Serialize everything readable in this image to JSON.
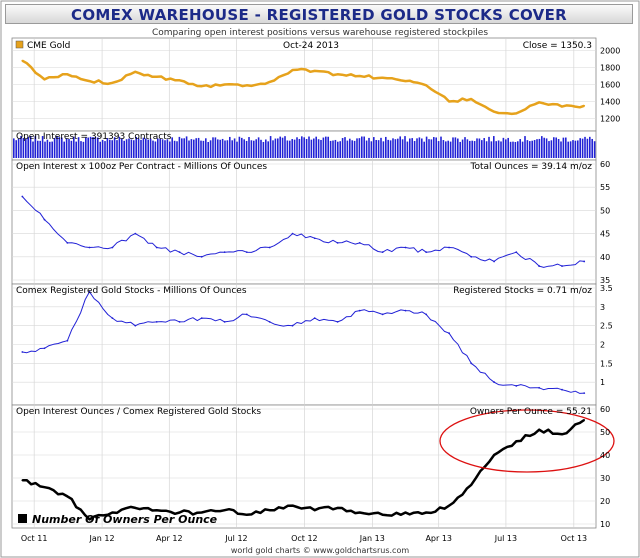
{
  "title": "COMEX WAREHOUSE - REGISTERED GOLD STOCKS COVER",
  "subtitle": "Comparing open interest positions versus warehouse registered stockpiles",
  "footer": "world gold charts © www.goldchartsrus.com",
  "colors": {
    "gold": "#e6a21c",
    "blue": "#2222d6",
    "black": "#000000",
    "annotation": "#dd1111"
  },
  "x_axis": {
    "labels": [
      "Oct 11",
      "Jan 12",
      "Apr 12",
      "Jul 12",
      "Oct 12",
      "Jan 13",
      "Apr 13",
      "Jul 13",
      "Oct 13"
    ],
    "start": "2011-09",
    "end": "2013-10-31"
  },
  "chart_data": [
    {
      "type": "line",
      "legend": "CME Gold",
      "date_label": "Oct-24  2013",
      "readout": "Close = 1350.3",
      "ylim": [
        1100,
        2100
      ],
      "yticks": [
        1200,
        1400,
        1600,
        1800,
        2000
      ],
      "x": [
        "2011-09",
        "2011-10",
        "2011-11",
        "2011-12",
        "2012-01",
        "2012-02",
        "2012-03",
        "2012-04",
        "2012-05",
        "2012-06",
        "2012-07",
        "2012-08",
        "2012-09",
        "2012-10",
        "2012-11",
        "2012-12",
        "2013-01",
        "2013-02",
        "2013-03",
        "2013-04",
        "2013-05",
        "2013-06",
        "2013-07",
        "2013-08",
        "2013-09",
        "2013-10"
      ],
      "values": [
        1880,
        1660,
        1720,
        1640,
        1620,
        1750,
        1690,
        1650,
        1580,
        1600,
        1590,
        1630,
        1770,
        1760,
        1720,
        1700,
        1680,
        1640,
        1590,
        1400,
        1430,
        1280,
        1260,
        1390,
        1340,
        1350
      ]
    },
    {
      "type": "bar",
      "label": "Open Interest = 391393 Contracts"
    },
    {
      "type": "line",
      "label": "Open Interest x 100oz Per Contract - Millions Of Ounces",
      "readout": "Total Ounces = 39.14 m/oz",
      "ylim": [
        35,
        60
      ],
      "yticks": [
        35,
        40,
        45,
        50,
        55,
        60
      ],
      "x": [
        "2011-09",
        "2011-10",
        "2011-11",
        "2011-12",
        "2012-01",
        "2012-02",
        "2012-03",
        "2012-04",
        "2012-05",
        "2012-06",
        "2012-07",
        "2012-08",
        "2012-09",
        "2012-10",
        "2012-11",
        "2012-12",
        "2013-01",
        "2013-02",
        "2013-03",
        "2013-04",
        "2013-05",
        "2013-06",
        "2013-07",
        "2013-08",
        "2013-09",
        "2013-10"
      ],
      "values": [
        53,
        48,
        43,
        42,
        42,
        45,
        42,
        41,
        40,
        41,
        41,
        42,
        45,
        44,
        43,
        43,
        41,
        42,
        41,
        42,
        40,
        39,
        41,
        38,
        38,
        39
      ]
    },
    {
      "type": "line",
      "label": "Comex Registered Gold Stocks - Millions Of Ounces",
      "readout": "Registered Stocks = 0.71 m/oz",
      "ylim": [
        0.5,
        3.5
      ],
      "yticks": [
        1.0,
        1.5,
        2.0,
        2.5,
        3.0,
        3.5
      ],
      "x": [
        "2011-09",
        "2011-10",
        "2011-11",
        "2011-12",
        "2012-01",
        "2012-02",
        "2012-03",
        "2012-04",
        "2012-05",
        "2012-06",
        "2012-07",
        "2012-08",
        "2012-09",
        "2012-10",
        "2012-11",
        "2012-12",
        "2013-01",
        "2013-02",
        "2013-03",
        "2013-04",
        "2013-05",
        "2013-06",
        "2013-07",
        "2013-08",
        "2013-09",
        "2013-10"
      ],
      "values": [
        1.8,
        1.9,
        2.1,
        3.4,
        2.7,
        2.5,
        2.6,
        2.6,
        2.7,
        2.6,
        2.8,
        2.6,
        2.5,
        2.7,
        2.6,
        2.9,
        2.8,
        2.9,
        2.8,
        2.3,
        1.5,
        1.0,
        0.9,
        0.85,
        0.8,
        0.71
      ]
    },
    {
      "type": "line",
      "label": "Open Interest Ounces / Comex Registered Gold Stocks",
      "readout": "Owners Per Ounce = 55.21",
      "legend": "Number Of Owners Per Ounce",
      "ylim": [
        10,
        60
      ],
      "yticks": [
        10,
        20,
        30,
        40,
        50,
        60
      ],
      "x": [
        "2011-09",
        "2011-10",
        "2011-11",
        "2011-12",
        "2012-01",
        "2012-02",
        "2012-03",
        "2012-04",
        "2012-05",
        "2012-06",
        "2012-07",
        "2012-08",
        "2012-09",
        "2012-10",
        "2012-11",
        "2012-12",
        "2013-01",
        "2013-02",
        "2013-03",
        "2013-04",
        "2013-05",
        "2013-06",
        "2013-07",
        "2013-08",
        "2013-09",
        "2013-10"
      ],
      "values": [
        29,
        26,
        22,
        12,
        15,
        17,
        16,
        15,
        15,
        16,
        14,
        16,
        18,
        16,
        17,
        15,
        14,
        15,
        15,
        18,
        27,
        40,
        46,
        51,
        49,
        55.21
      ]
    }
  ]
}
